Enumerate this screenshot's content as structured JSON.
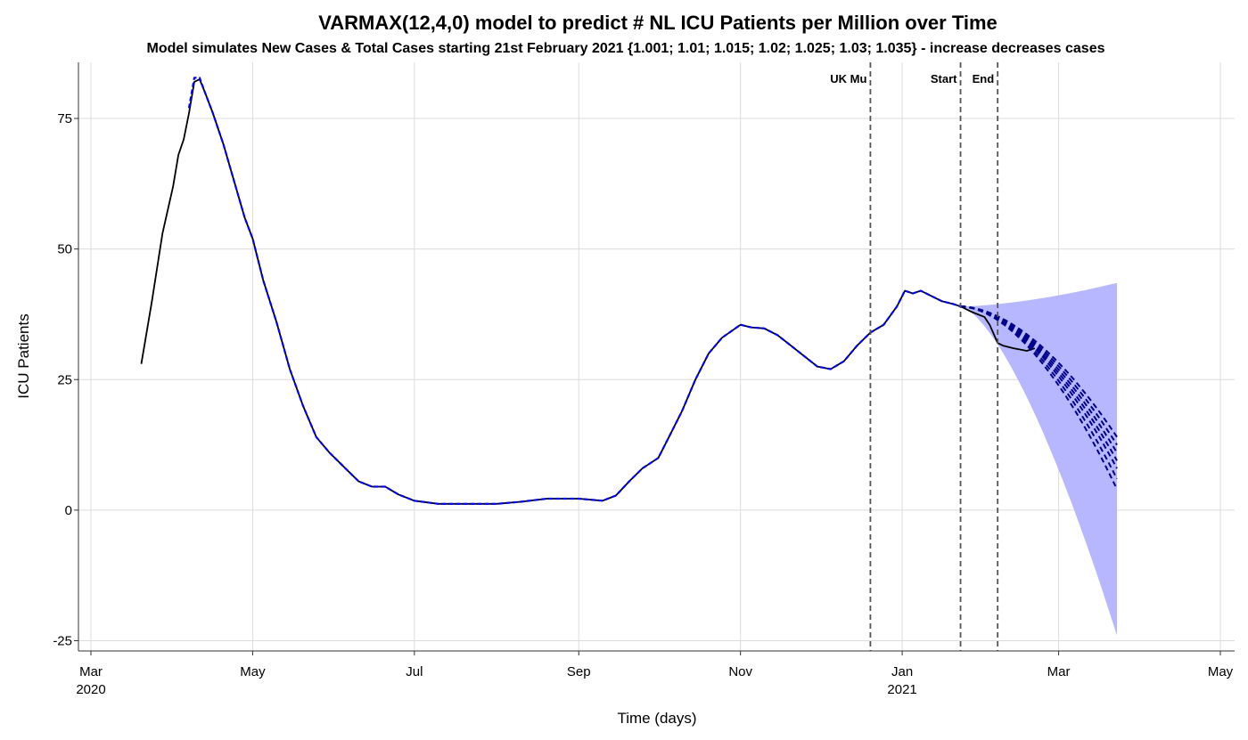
{
  "chart_data": {
    "type": "line",
    "title": "VARMAX(12,4,0) model to predict # NL ICU Patients per Million over Time",
    "subtitle": "Model simulates New Cases & Total Cases starting 21st February 2021 {1.001; 1.01; 1.015; 1.02; 1.025; 1.03; 1.035} - increase decreases cases",
    "xlabel": "Time (days)",
    "ylabel": "ICU Patients",
    "xlim": [
      "2020-03-01",
      "2021-05-01"
    ],
    "ylim": [
      -27,
      86
    ],
    "yticks": [
      -25,
      0,
      25,
      50,
      75
    ],
    "xticks": [
      {
        "date": "2020-03-01",
        "label": "Mar",
        "year": "2020"
      },
      {
        "date": "2020-05-01",
        "label": "May",
        "year": ""
      },
      {
        "date": "2020-07-01",
        "label": "Jul",
        "year": ""
      },
      {
        "date": "2020-09-01",
        "label": "Sep",
        "year": ""
      },
      {
        "date": "2020-11-01",
        "label": "Nov",
        "year": ""
      },
      {
        "date": "2021-01-01",
        "label": "Jan",
        "year": "2021"
      },
      {
        "date": "2021-03-01",
        "label": "Mar",
        "year": ""
      },
      {
        "date": "2021-05-01",
        "label": "May",
        "year": ""
      }
    ],
    "grid": true,
    "vlines": [
      {
        "date": "2020-12-20",
        "label": "UK Mu"
      },
      {
        "date": "2021-01-23",
        "label": "Start"
      },
      {
        "date": "2021-02-06",
        "label": "End"
      }
    ],
    "series": [
      {
        "role": "observed",
        "color": "#000000",
        "points": [
          [
            "2020-03-20",
            28
          ],
          [
            "2020-03-24",
            40
          ],
          [
            "2020-03-28",
            53
          ],
          [
            "2020-04-01",
            62
          ],
          [
            "2020-04-03",
            68
          ],
          [
            "2020-04-05",
            71
          ],
          [
            "2020-04-07",
            76
          ],
          [
            "2020-04-08",
            79
          ],
          [
            "2020-04-09",
            82
          ],
          [
            "2020-04-11",
            82.5
          ],
          [
            "2020-04-13",
            80
          ],
          [
            "2020-04-16",
            76
          ],
          [
            "2020-04-20",
            70
          ],
          [
            "2020-04-24",
            63
          ],
          [
            "2020-04-28",
            56
          ],
          [
            "2020-05-01",
            52
          ],
          [
            "2020-05-05",
            44
          ],
          [
            "2020-05-10",
            36
          ],
          [
            "2020-05-15",
            27
          ],
          [
            "2020-05-20",
            20
          ],
          [
            "2020-05-25",
            14
          ],
          [
            "2020-05-30",
            11
          ],
          [
            "2020-06-05",
            8
          ],
          [
            "2020-06-10",
            5.5
          ],
          [
            "2020-06-15",
            4.5
          ],
          [
            "2020-06-20",
            4.5
          ],
          [
            "2020-06-25",
            3
          ],
          [
            "2020-07-01",
            1.8
          ],
          [
            "2020-07-10",
            1.2
          ],
          [
            "2020-07-20",
            1.2
          ],
          [
            "2020-08-01",
            1.2
          ],
          [
            "2020-08-10",
            1.6
          ],
          [
            "2020-08-20",
            2.2
          ],
          [
            "2020-09-01",
            2.2
          ],
          [
            "2020-09-10",
            1.8
          ],
          [
            "2020-09-15",
            2.8
          ],
          [
            "2020-09-20",
            5.5
          ],
          [
            "2020-09-25",
            8
          ],
          [
            "2020-10-01",
            10
          ],
          [
            "2020-10-05",
            14
          ],
          [
            "2020-10-10",
            19
          ],
          [
            "2020-10-15",
            25
          ],
          [
            "2020-10-20",
            30
          ],
          [
            "2020-10-25",
            33
          ],
          [
            "2020-11-01",
            35.5
          ],
          [
            "2020-11-05",
            35
          ],
          [
            "2020-11-10",
            34.8
          ],
          [
            "2020-11-15",
            33.5
          ],
          [
            "2020-11-20",
            31.5
          ],
          [
            "2020-11-25",
            29.5
          ],
          [
            "2020-11-30",
            27.5
          ],
          [
            "2020-12-05",
            27
          ],
          [
            "2020-12-10",
            28.5
          ],
          [
            "2020-12-15",
            31.5
          ],
          [
            "2020-12-20",
            34
          ],
          [
            "2020-12-25",
            35.5
          ],
          [
            "2020-12-30",
            39
          ],
          [
            "2021-01-02",
            42
          ],
          [
            "2021-01-05",
            41.5
          ],
          [
            "2021-01-08",
            42
          ],
          [
            "2021-01-12",
            41
          ],
          [
            "2021-01-16",
            40
          ],
          [
            "2021-01-20",
            39.5
          ],
          [
            "2021-01-23",
            39
          ],
          [
            "2021-01-27",
            38
          ],
          [
            "2021-02-01",
            37
          ],
          [
            "2021-02-03",
            35.5
          ],
          [
            "2021-02-06",
            32
          ],
          [
            "2021-02-08",
            31.5
          ],
          [
            "2021-02-12",
            31
          ],
          [
            "2021-02-17",
            30.5
          ],
          [
            "2021-02-20",
            31
          ]
        ]
      },
      {
        "role": "fitted",
        "color": "#0000ff",
        "style": "dashed",
        "points": [
          [
            "2020-04-07",
            77
          ],
          [
            "2020-04-09",
            82.8
          ],
          [
            "2020-04-11",
            82.8
          ],
          [
            "2020-04-13",
            80
          ],
          [
            "2020-04-16",
            76
          ],
          [
            "2020-04-20",
            70
          ],
          [
            "2020-04-24",
            63
          ],
          [
            "2020-04-28",
            56
          ],
          [
            "2020-05-01",
            52
          ],
          [
            "2020-05-05",
            44
          ],
          [
            "2020-05-10",
            36
          ],
          [
            "2020-05-15",
            27
          ],
          [
            "2020-05-20",
            20
          ],
          [
            "2020-05-25",
            14
          ],
          [
            "2020-05-30",
            11
          ],
          [
            "2020-06-05",
            8
          ],
          [
            "2020-06-10",
            5.5
          ],
          [
            "2020-06-15",
            4.5
          ],
          [
            "2020-06-20",
            4.5
          ],
          [
            "2020-06-25",
            3
          ],
          [
            "2020-07-01",
            1.8
          ],
          [
            "2020-07-10",
            1.2
          ],
          [
            "2020-07-20",
            1.2
          ],
          [
            "2020-08-01",
            1.2
          ],
          [
            "2020-08-10",
            1.6
          ],
          [
            "2020-08-20",
            2.2
          ],
          [
            "2020-09-01",
            2.2
          ],
          [
            "2020-09-10",
            1.8
          ],
          [
            "2020-09-15",
            2.8
          ],
          [
            "2020-09-20",
            5.5
          ],
          [
            "2020-09-25",
            8
          ],
          [
            "2020-10-01",
            10
          ],
          [
            "2020-10-05",
            14
          ],
          [
            "2020-10-10",
            19
          ],
          [
            "2020-10-15",
            25
          ],
          [
            "2020-10-20",
            30
          ],
          [
            "2020-10-25",
            33
          ],
          [
            "2020-11-01",
            35.5
          ],
          [
            "2020-11-05",
            35
          ],
          [
            "2020-11-10",
            34.8
          ],
          [
            "2020-11-15",
            33.5
          ],
          [
            "2020-11-20",
            31.5
          ],
          [
            "2020-11-25",
            29.5
          ],
          [
            "2020-11-30",
            27.5
          ],
          [
            "2020-12-05",
            27
          ],
          [
            "2020-12-10",
            28.5
          ],
          [
            "2020-12-15",
            31.5
          ],
          [
            "2020-12-20",
            34
          ],
          [
            "2020-12-25",
            35.5
          ],
          [
            "2020-12-30",
            39
          ],
          [
            "2021-01-02",
            42
          ],
          [
            "2021-01-05",
            41.5
          ],
          [
            "2021-01-08",
            42
          ],
          [
            "2021-01-12",
            41
          ],
          [
            "2021-01-16",
            40
          ],
          [
            "2021-01-20",
            39.5
          ],
          [
            "2021-01-23",
            39
          ]
        ]
      }
    ],
    "forecast": {
      "color": "#00008b",
      "band_color": "#b3b3ff",
      "start": "2021-01-23",
      "end": "2021-03-23",
      "scenarios": [
        {
          "param": "1.001",
          "end_value": 14
        },
        {
          "param": "1.01",
          "end_value": 12.5
        },
        {
          "param": "1.015",
          "end_value": 11
        },
        {
          "param": "1.02",
          "end_value": 9.5
        },
        {
          "param": "1.025",
          "end_value": 8
        },
        {
          "param": "1.03",
          "end_value": 6
        },
        {
          "param": "1.035",
          "end_value": 4
        }
      ],
      "band_upper_end": 43.5,
      "band_lower_end": -24
    }
  }
}
